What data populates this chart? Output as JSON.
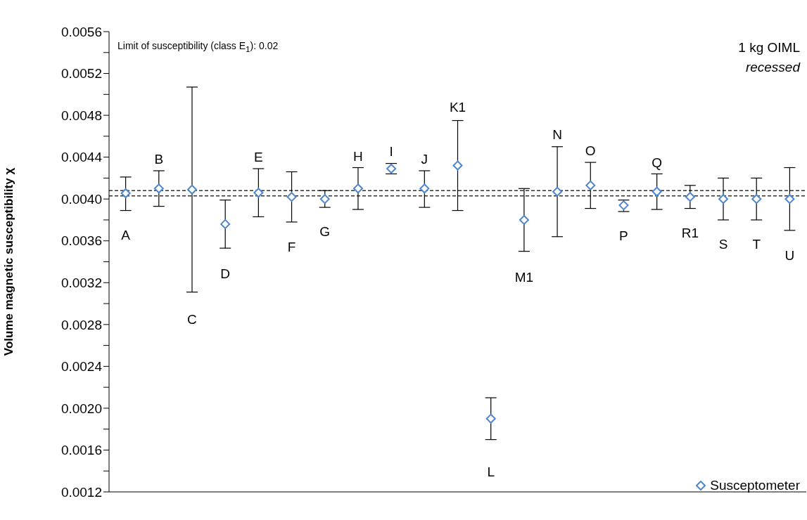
{
  "chart_data": {
    "type": "scatter",
    "ylabel": "Volume magnetic susceptibility χ",
    "categories": [
      "A",
      "B",
      "C",
      "D",
      "E",
      "F",
      "G",
      "H",
      "I",
      "J",
      "K1",
      "L",
      "M1",
      "N",
      "O",
      "P",
      "Q",
      "R1",
      "S",
      "T",
      "U"
    ],
    "series": [
      {
        "name": "Susceptometer",
        "color": "#4f86d0",
        "values": [
          0.004055,
          0.0041,
          0.00409,
          0.00376,
          0.00406,
          0.00402,
          0.004,
          0.0041,
          0.00429,
          0.0041,
          0.00432,
          0.0019,
          0.0038,
          0.00407,
          0.00413,
          0.00394,
          0.00407,
          0.00402,
          0.004,
          0.004,
          0.004
        ],
        "errors": [
          [
            0.00389,
            0.00421
          ],
          [
            0.00393,
            0.00427
          ],
          [
            0.00311,
            0.00507
          ],
          [
            0.00353,
            0.00399
          ],
          [
            0.00383,
            0.00429
          ],
          [
            0.00378,
            0.00426
          ],
          [
            0.00392,
            0.00408
          ],
          [
            0.0039,
            0.0043
          ],
          [
            0.00424,
            0.00434
          ],
          [
            0.00392,
            0.00427
          ],
          [
            0.00389,
            0.00475
          ],
          [
            0.0017,
            0.0021
          ],
          [
            0.0035,
            0.0041
          ],
          [
            0.00364,
            0.0045
          ],
          [
            0.00391,
            0.00435
          ],
          [
            0.00388,
            0.00399
          ],
          [
            0.0039,
            0.00424
          ],
          [
            0.00391,
            0.00413
          ],
          [
            0.0038,
            0.0042
          ],
          [
            0.0038,
            0.0042
          ],
          [
            0.0037,
            0.0043
          ]
        ]
      }
    ],
    "ylim": [
      0.0012,
      0.0056
    ],
    "yticks": [
      {
        "value": 0.0012,
        "label": "0.0012"
      },
      {
        "value": 0.0014,
        "label": null
      },
      {
        "value": 0.0016,
        "label": "0.0016"
      },
      {
        "value": 0.0018,
        "label": null
      },
      {
        "value": 0.002,
        "label": "0.0020"
      },
      {
        "value": 0.0022,
        "label": null
      },
      {
        "value": 0.0024,
        "label": "0.0024"
      },
      {
        "value": 0.0026,
        "label": null
      },
      {
        "value": 0.0028,
        "label": "0.0028"
      },
      {
        "value": 0.003,
        "label": null
      },
      {
        "value": 0.0032,
        "label": "0.0032"
      },
      {
        "value": 0.0034,
        "label": null
      },
      {
        "value": 0.0036,
        "label": "0.0036"
      },
      {
        "value": 0.0038,
        "label": null
      },
      {
        "value": 0.004,
        "label": "0.0040"
      },
      {
        "value": 0.0042,
        "label": null
      },
      {
        "value": 0.0044,
        "label": "0.0044"
      },
      {
        "value": 0.0046,
        "label": null
      },
      {
        "value": 0.0048,
        "label": "0.0048"
      },
      {
        "value": 0.005,
        "label": null
      },
      {
        "value": 0.0052,
        "label": "0.0052"
      },
      {
        "value": 0.0054,
        "label": null
      },
      {
        "value": 0.0056,
        "label": "0.0056"
      }
    ],
    "marker": "diamond",
    "legend": "bottom right",
    "grid": false,
    "ref_lines": [
      {
        "axis": "y",
        "value": 0.00408,
        "line_style": "dashed",
        "color": "#333333"
      },
      {
        "axis": "y",
        "value": 0.00403,
        "line_style": "dashed",
        "color": "#333333"
      }
    ],
    "annotations": [
      "Limit of susceptibility (class E$_{1}$): 0.02",
      "1 kg OIML",
      "recessed"
    ]
  }
}
